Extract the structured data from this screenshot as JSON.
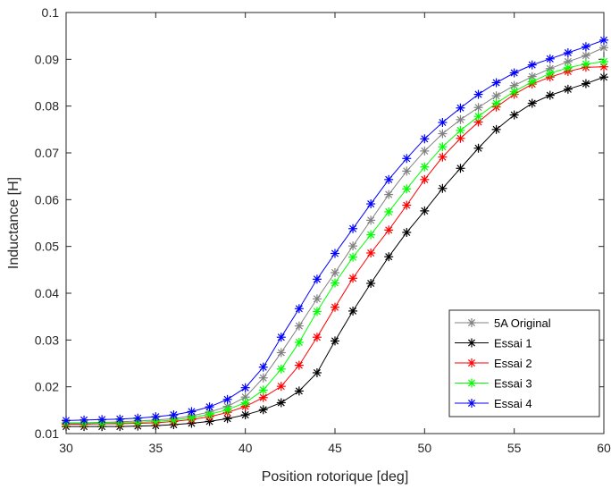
{
  "chart_data": {
    "type": "line",
    "title": "",
    "xlabel": "Position rotorique [deg]",
    "ylabel": "Inductance [H]",
    "xlim": [
      30,
      60
    ],
    "ylim": [
      0.01,
      0.1
    ],
    "xticks": [
      "30",
      "35",
      "40",
      "45",
      "50",
      "55",
      "60"
    ],
    "yticks": [
      "0.01",
      "0.02",
      "0.03",
      "0.04",
      "0.05",
      "0.06",
      "0.07",
      "0.08",
      "0.09",
      "0.1"
    ],
    "grid": false,
    "legend_position": "bottom-right",
    "x": [
      30,
      31,
      32,
      33,
      34,
      35,
      36,
      37,
      38,
      39,
      40,
      41,
      42,
      43,
      44,
      45,
      46,
      47,
      48,
      49,
      50,
      51,
      52,
      53,
      54,
      55,
      56,
      57,
      58,
      59,
      60
    ],
    "series": [
      {
        "name": "5A Original",
        "color": "#808080",
        "values": [
          0.0123,
          0.0123,
          0.0124,
          0.0125,
          0.0127,
          0.0129,
          0.0132,
          0.0138,
          0.0146,
          0.0158,
          0.0178,
          0.0219,
          0.0273,
          0.033,
          0.0388,
          0.0444,
          0.0501,
          0.0556,
          0.0611,
          0.0661,
          0.0704,
          0.0741,
          0.0771,
          0.0797,
          0.0822,
          0.0844,
          0.0863,
          0.088,
          0.0895,
          0.0908,
          0.0925
        ]
      },
      {
        "name": "Essai 1",
        "color": "#000000",
        "values": [
          0.0115,
          0.0115,
          0.0115,
          0.0115,
          0.0116,
          0.0117,
          0.0119,
          0.0122,
          0.0126,
          0.0132,
          0.014,
          0.0151,
          0.0166,
          0.0191,
          0.023,
          0.0298,
          0.0362,
          0.0421,
          0.0478,
          0.053,
          0.0576,
          0.0624,
          0.0667,
          0.071,
          0.075,
          0.0781,
          0.0806,
          0.0823,
          0.0836,
          0.0848,
          0.0862
        ]
      },
      {
        "name": "Essai 2",
        "color": "#ff0000",
        "values": [
          0.012,
          0.012,
          0.0121,
          0.0121,
          0.0122,
          0.0123,
          0.0126,
          0.013,
          0.0136,
          0.0145,
          0.0158,
          0.0177,
          0.0201,
          0.0246,
          0.0306,
          0.037,
          0.0432,
          0.0486,
          0.0535,
          0.0588,
          0.0643,
          0.0691,
          0.0731,
          0.0766,
          0.0798,
          0.0825,
          0.0847,
          0.0862,
          0.0874,
          0.0883,
          0.0884
        ]
      },
      {
        "name": "Essai 3",
        "color": "#00ff00",
        "values": [
          0.0122,
          0.0122,
          0.0122,
          0.0123,
          0.0124,
          0.0126,
          0.0129,
          0.0134,
          0.0141,
          0.0151,
          0.0166,
          0.0193,
          0.0238,
          0.0295,
          0.0361,
          0.0422,
          0.0477,
          0.0525,
          0.0574,
          0.0623,
          0.067,
          0.0713,
          0.0748,
          0.0778,
          0.0806,
          0.0831,
          0.0852,
          0.087,
          0.0882,
          0.089,
          0.0895
        ]
      },
      {
        "name": "Essai 4",
        "color": "#0000ff",
        "values": [
          0.0128,
          0.0129,
          0.013,
          0.0131,
          0.0133,
          0.0136,
          0.014,
          0.0147,
          0.0157,
          0.0173,
          0.0198,
          0.0242,
          0.0306,
          0.0367,
          0.043,
          0.0485,
          0.0538,
          0.0591,
          0.0643,
          0.0688,
          0.073,
          0.0765,
          0.0796,
          0.0825,
          0.085,
          0.0871,
          0.0888,
          0.0901,
          0.0914,
          0.0927,
          0.0941
        ]
      }
    ]
  }
}
